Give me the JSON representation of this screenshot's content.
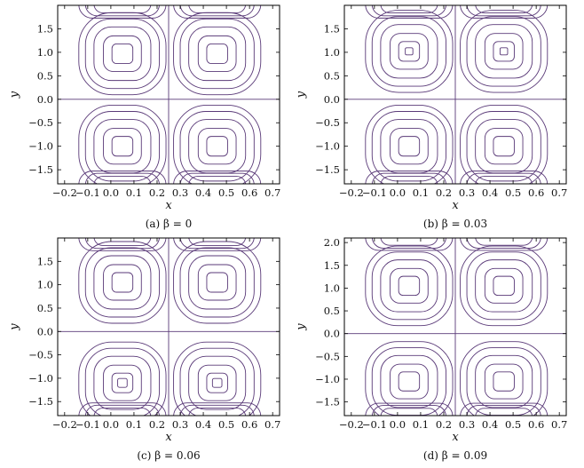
{
  "chart_data": [
    {
      "type": "contour",
      "caption": "(a) β = 0",
      "beta": 0,
      "xlabel": "x",
      "ylabel": "y",
      "xlim": [
        -0.23,
        0.73
      ],
      "ylim": [
        -1.8,
        2.0
      ],
      "xticks": [
        -0.2,
        -0.1,
        0.0,
        0.1,
        0.2,
        0.3,
        0.4,
        0.5,
        0.6,
        0.7
      ],
      "xtick_labels": [
        "−0.2",
        "−0.1",
        "0.0",
        "0.1",
        "0.2",
        "0.3",
        "0.4",
        "0.5",
        "0.6",
        "0.7"
      ],
      "yticks": [
        -1.5,
        -1.0,
        -0.5,
        0.0,
        0.5,
        1.0,
        1.5
      ],
      "ytick_labels": [
        "−1.5",
        "−1.0",
        "−0.5",
        "0.0",
        "0.5",
        "1.0",
        "1.5"
      ],
      "separatrix_x": 0.25,
      "separatrix_y": 0.0,
      "cells": [
        {
          "cx": 0.05,
          "cy": 0.97,
          "levels": [
            0.92,
            0.78,
            0.6,
            0.4,
            0.22
          ]
        },
        {
          "cx": 0.46,
          "cy": 0.97,
          "levels": [
            0.92,
            0.78,
            0.6,
            0.4,
            0.22
          ]
        },
        {
          "cx": 0.05,
          "cy": -1.0,
          "levels": [
            0.92,
            0.78,
            0.6,
            0.4,
            0.22
          ]
        },
        {
          "cx": 0.46,
          "cy": -1.0,
          "levels": [
            0.92,
            0.78,
            0.6,
            0.4,
            0.22
          ]
        }
      ]
    },
    {
      "type": "contour",
      "caption": "(b) β = 0.03",
      "beta": 0.03,
      "xlabel": "x",
      "ylabel": "y",
      "xlim": [
        -0.23,
        0.73
      ],
      "ylim": [
        -1.8,
        2.0
      ],
      "xticks": [
        -0.2,
        -0.1,
        0.0,
        0.1,
        0.2,
        0.3,
        0.4,
        0.5,
        0.6,
        0.7
      ],
      "xtick_labels": [
        "−0.2",
        "−0.1",
        "0.0",
        "0.1",
        "0.2",
        "0.3",
        "0.4",
        "0.5",
        "0.6",
        "0.7"
      ],
      "yticks": [
        -1.5,
        -1.0,
        -0.5,
        0.0,
        0.5,
        1.0,
        1.5
      ],
      "ytick_labels": [
        "−1.5",
        "−1.0",
        "−0.5",
        "0.0",
        "0.5",
        "1.0",
        "1.5"
      ],
      "separatrix_x": 0.25,
      "separatrix_y": 0.0,
      "cells": [
        {
          "cx": 0.05,
          "cy": 1.02,
          "levels": [
            0.92,
            0.78,
            0.6,
            0.4,
            0.22,
            0.08
          ]
        },
        {
          "cx": 0.46,
          "cy": 1.02,
          "levels": [
            0.92,
            0.78,
            0.6,
            0.4,
            0.22,
            0.08
          ]
        },
        {
          "cx": 0.05,
          "cy": -1.0,
          "levels": [
            0.92,
            0.78,
            0.6,
            0.4,
            0.22
          ]
        },
        {
          "cx": 0.46,
          "cy": -1.0,
          "levels": [
            0.92,
            0.78,
            0.6,
            0.4,
            0.22
          ]
        }
      ]
    },
    {
      "type": "contour",
      "caption": "(c) β = 0.06",
      "beta": 0.06,
      "xlabel": "x",
      "ylabel": "y",
      "xlim": [
        -0.23,
        0.73
      ],
      "ylim": [
        -1.8,
        2.0
      ],
      "xticks": [
        -0.2,
        -0.1,
        0.0,
        0.1,
        0.2,
        0.3,
        0.4,
        0.5,
        0.6,
        0.7
      ],
      "xtick_labels": [
        "−0.2",
        "−0.1",
        "0.0",
        "0.1",
        "0.2",
        "0.3",
        "0.4",
        "0.5",
        "0.6",
        "0.7"
      ],
      "yticks": [
        -1.5,
        -1.0,
        -0.5,
        0.0,
        0.5,
        1.0,
        1.5
      ],
      "ytick_labels": [
        "−1.5",
        "−1.0",
        "−0.5",
        "0.0",
        "0.5",
        "1.0",
        "1.5"
      ],
      "separatrix_x": 0.25,
      "separatrix_y": 0.0,
      "cells": [
        {
          "cx": 0.05,
          "cy": 1.05,
          "levels": [
            0.92,
            0.78,
            0.6,
            0.4,
            0.22
          ]
        },
        {
          "cx": 0.46,
          "cy": 1.05,
          "levels": [
            0.92,
            0.78,
            0.6,
            0.4,
            0.22
          ]
        },
        {
          "cx": 0.05,
          "cy": -1.1,
          "levels": [
            0.92,
            0.78,
            0.6,
            0.4,
            0.22,
            0.1
          ]
        },
        {
          "cx": 0.46,
          "cy": -1.1,
          "levels": [
            0.92,
            0.78,
            0.6,
            0.4,
            0.22,
            0.1
          ]
        }
      ]
    },
    {
      "type": "contour",
      "caption": "(d) β = 0.09",
      "beta": 0.09,
      "xlabel": "x",
      "ylabel": "y",
      "xlim": [
        -0.23,
        0.73
      ],
      "ylim": [
        -1.8,
        2.1
      ],
      "xticks": [
        -0.2,
        -0.1,
        0.0,
        0.1,
        0.2,
        0.3,
        0.4,
        0.5,
        0.6,
        0.7
      ],
      "xtick_labels": [
        "−0.2",
        "−0.1",
        "0.0",
        "0.1",
        "0.2",
        "0.3",
        "0.4",
        "0.5",
        "0.6",
        "0.7"
      ],
      "yticks": [
        -1.5,
        -1.0,
        -0.5,
        0.0,
        0.5,
        1.0,
        1.5,
        2.0
      ],
      "ytick_labels": [
        "−1.5",
        "−1.0",
        "−0.5",
        "0.0",
        "0.5",
        "1.0",
        "1.5",
        "2.0"
      ],
      "separatrix_x": 0.25,
      "separatrix_y": 0.0,
      "cells": [
        {
          "cx": 0.05,
          "cy": 1.05,
          "levels": [
            0.92,
            0.78,
            0.6,
            0.4,
            0.22
          ]
        },
        {
          "cx": 0.46,
          "cy": 1.05,
          "levels": [
            0.92,
            0.78,
            0.6,
            0.4,
            0.22
          ]
        },
        {
          "cx": 0.05,
          "cy": -1.05,
          "levels": [
            0.92,
            0.78,
            0.6,
            0.4,
            0.22
          ]
        },
        {
          "cx": 0.46,
          "cy": -1.05,
          "levels": [
            0.92,
            0.78,
            0.6,
            0.4,
            0.22
          ]
        }
      ]
    }
  ],
  "colors": {
    "contour": "#5a3a78",
    "frame": "#000000"
  }
}
